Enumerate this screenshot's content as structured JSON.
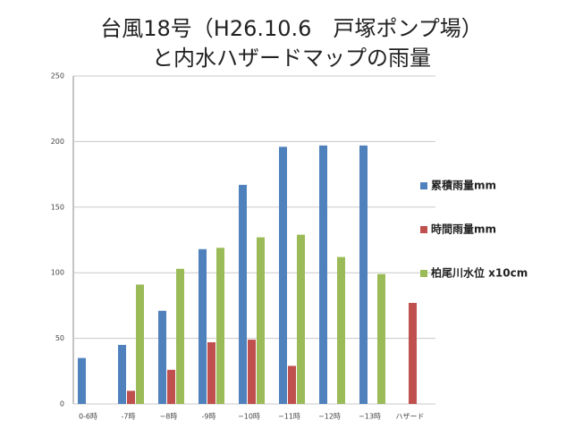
{
  "chart_data": {
    "type": "bar",
    "title_lines": [
      "台風18号（H26.10.6　戸塚ポンプ場）",
      "と内水ハザードマップの雨量"
    ],
    "categories": [
      "0-6時",
      "-7時",
      "−8時",
      "-9時",
      "−10時",
      "−11時",
      "−12時",
      "−13時",
      "ハザード"
    ],
    "series": [
      {
        "name": "累積雨量mm",
        "color": "#4f81bd",
        "values": [
          35,
          45,
          71,
          118,
          167,
          196,
          197,
          197,
          null
        ]
      },
      {
        "name": "時間雨量mm",
        "color": "#c0504d",
        "values": [
          null,
          10,
          26,
          47,
          49,
          29,
          null,
          null,
          77
        ]
      },
      {
        "name": "柏尾川水位 x10cm",
        "color": "#9bbb59",
        "values": [
          null,
          91,
          103,
          119,
          127,
          129,
          112,
          99,
          null
        ]
      }
    ],
    "ylim": [
      0,
      250
    ],
    "yticks": [
      0,
      50,
      100,
      150,
      200,
      250
    ],
    "grid": true,
    "legend": "right"
  }
}
